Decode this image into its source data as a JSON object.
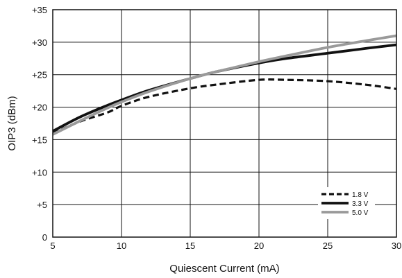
{
  "chart_data": {
    "type": "line",
    "xlabel": "Quiescent Current (mA)",
    "ylabel": "OIP3 (dBm)",
    "xlim": [
      5,
      30
    ],
    "ylim": [
      0,
      35
    ],
    "x_ticks": [
      "5",
      "10",
      "15",
      "20",
      "25",
      "30"
    ],
    "y_ticks": [
      "0",
      "+5",
      "+10",
      "+15",
      "+20",
      "+25",
      "+30",
      "+35"
    ],
    "grid": true,
    "legend_position": "bottom-right",
    "series": [
      {
        "name": "1.8 V",
        "color": "#111111",
        "dash": "dashed",
        "x": [
          5,
          7,
          9,
          10,
          12,
          15,
          17,
          20,
          22,
          25,
          28,
          30
        ],
        "y": [
          16.0,
          17.8,
          19.2,
          20.2,
          21.6,
          22.9,
          23.5,
          24.2,
          24.2,
          24.0,
          23.4,
          22.8
        ]
      },
      {
        "name": "3.3 V",
        "color": "#111111",
        "dash": "solid",
        "x": [
          5,
          7,
          9,
          10,
          12,
          15,
          17,
          20,
          22,
          25,
          28,
          30
        ],
        "y": [
          16.3,
          18.5,
          20.3,
          21.1,
          22.6,
          24.4,
          25.5,
          26.8,
          27.5,
          28.3,
          29.1,
          29.6
        ]
      },
      {
        "name": "5.0 V",
        "color": "#9a9a9a",
        "dash": "solid",
        "x": [
          5,
          7,
          9,
          10,
          12,
          15,
          17,
          20,
          22,
          25,
          28,
          30
        ],
        "y": [
          15.8,
          17.9,
          19.9,
          20.8,
          22.4,
          24.4,
          25.5,
          27.0,
          27.9,
          29.2,
          30.3,
          31.0
        ]
      }
    ]
  }
}
